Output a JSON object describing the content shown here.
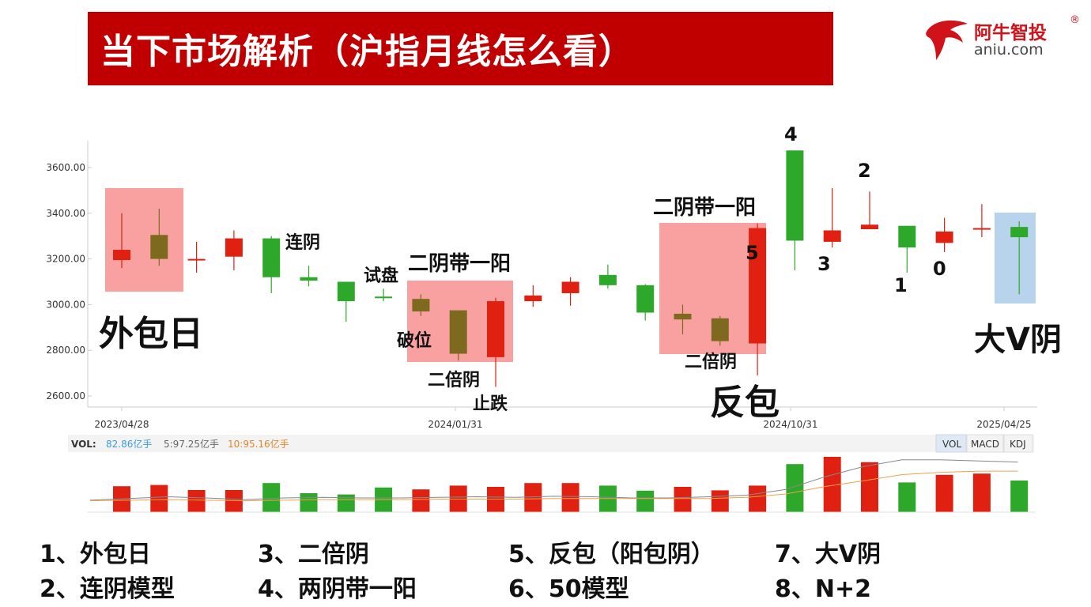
{
  "header": {
    "title": "当下市场解析（沪指月线怎么看）"
  },
  "logo": {
    "cn": "阿牛智投",
    "reg": "®",
    "en": "aniu.com"
  },
  "colors": {
    "up": "#e02010",
    "down": "#2ea82a",
    "neutral": "#7d6a1e",
    "accent": "#c00000"
  },
  "chart_data": {
    "type": "candlestick",
    "y_ticks": [
      "3600.00",
      "3400.00",
      "3200.00",
      "3000.00",
      "2800.00",
      "2600.00"
    ],
    "ylim": [
      2550,
      3720
    ],
    "x_labels": [
      "2023/04/28",
      "2024/01/31",
      "2024/10/31",
      "2025/04/25"
    ],
    "candles": [
      {
        "o": 3195,
        "c": 3240,
        "h": 3400,
        "l": 3160,
        "color": "up"
      },
      {
        "o": 3305,
        "c": 3200,
        "h": 3420,
        "l": 3170,
        "color": "neutral"
      },
      {
        "o": 3200,
        "c": 3195,
        "h": 3275,
        "l": 3140,
        "color": "up"
      },
      {
        "o": 3210,
        "c": 3290,
        "h": 3325,
        "l": 3150,
        "color": "up"
      },
      {
        "o": 3290,
        "c": 3120,
        "h": 3300,
        "l": 3050,
        "color": "down"
      },
      {
        "o": 3120,
        "c": 3105,
        "h": 3170,
        "l": 3080,
        "color": "down"
      },
      {
        "o": 3100,
        "c": 3015,
        "h": 3100,
        "l": 2925,
        "color": "down"
      },
      {
        "o": 3035,
        "c": 3030,
        "h": 3070,
        "l": 3015,
        "color": "down"
      },
      {
        "o": 3025,
        "c": 2970,
        "h": 3045,
        "l": 2950,
        "color": "neutral"
      },
      {
        "o": 2975,
        "c": 2785,
        "h": 2975,
        "l": 2755,
        "color": "neutral"
      },
      {
        "o": 2770,
        "c": 3015,
        "h": 3030,
        "l": 2640,
        "color": "up"
      },
      {
        "o": 3015,
        "c": 3040,
        "h": 3085,
        "l": 2990,
        "color": "up"
      },
      {
        "o": 3050,
        "c": 3100,
        "h": 3120,
        "l": 2995,
        "color": "up"
      },
      {
        "o": 3130,
        "c": 3085,
        "h": 3175,
        "l": 3070,
        "color": "down"
      },
      {
        "o": 3085,
        "c": 2965,
        "h": 3090,
        "l": 2930,
        "color": "down"
      },
      {
        "o": 2960,
        "c": 2935,
        "h": 3000,
        "l": 2870,
        "color": "neutral"
      },
      {
        "o": 2940,
        "c": 2840,
        "h": 2950,
        "l": 2820,
        "color": "neutral"
      },
      {
        "o": 2830,
        "c": 3335,
        "h": 3355,
        "l": 2690,
        "color": "up"
      },
      {
        "o": 3280,
        "c": 3675,
        "h": 3675,
        "l": 3150,
        "color": "down"
      },
      {
        "o": 3275,
        "c": 3325,
        "h": 3510,
        "l": 3250,
        "color": "up"
      },
      {
        "o": 3330,
        "c": 3350,
        "h": 3495,
        "l": 3330,
        "color": "up"
      },
      {
        "o": 3345,
        "c": 3250,
        "h": 3345,
        "l": 3140,
        "color": "down"
      },
      {
        "o": 3270,
        "c": 3320,
        "h": 3380,
        "l": 3230,
        "color": "up"
      },
      {
        "o": 3330,
        "c": 3335,
        "h": 3440,
        "l": 3295,
        "color": "up"
      },
      {
        "o": 3340,
        "c": 3295,
        "h": 3365,
        "l": 3045,
        "color": "down"
      }
    ],
    "volume": {
      "label": "VOL:",
      "v1": "82.86亿手",
      "v2": "5:97.25亿手",
      "v3": "10:95.16亿手",
      "values": [
        82,
        86,
        70,
        70,
        92,
        60,
        56,
        78,
        72,
        84,
        80,
        92,
        92,
        84,
        68,
        80,
        69,
        84,
        152,
        175,
        158,
        94,
        118,
        122,
        100
      ],
      "ma5": [
        21,
        24,
        27,
        25,
        22,
        25,
        26,
        25,
        25,
        26,
        27,
        26,
        28,
        27,
        25,
        25,
        27,
        30,
        40,
        62,
        80,
        92,
        92,
        90,
        88
      ],
      "ma10": [
        20,
        21,
        22,
        21,
        20,
        21,
        22,
        22,
        22,
        23,
        23,
        23,
        24,
        24,
        24,
        24,
        24,
        26,
        32,
        45,
        55,
        66,
        70,
        72,
        72
      ],
      "tabs": [
        "VOL",
        "MACD",
        "KDJ"
      ]
    },
    "annotations": {
      "waibaori": "外包日",
      "lianyin": "连阴",
      "shipan": "试盘",
      "eryin1": "二阴带一阳",
      "powei": "破位",
      "erbei1": "二倍阴",
      "zhidie": "止跌",
      "eryin2": "二阴带一阳",
      "erbei2": "二倍阴",
      "fanbao": "反包",
      "dav": "大V阴",
      "n4": "4",
      "n2": "2",
      "n5": "5",
      "n3": "3",
      "n1": "1",
      "n0": "0"
    }
  },
  "legend": {
    "col1": [
      "1、外包日",
      "2、连阴模型"
    ],
    "col2": [
      "3、二倍阴",
      "4、两阴带一阳"
    ],
    "col3": [
      "5、反包（阳包阴）",
      "6、50模型"
    ],
    "col4": [
      "7、大V阴",
      "8、N+2"
    ]
  }
}
